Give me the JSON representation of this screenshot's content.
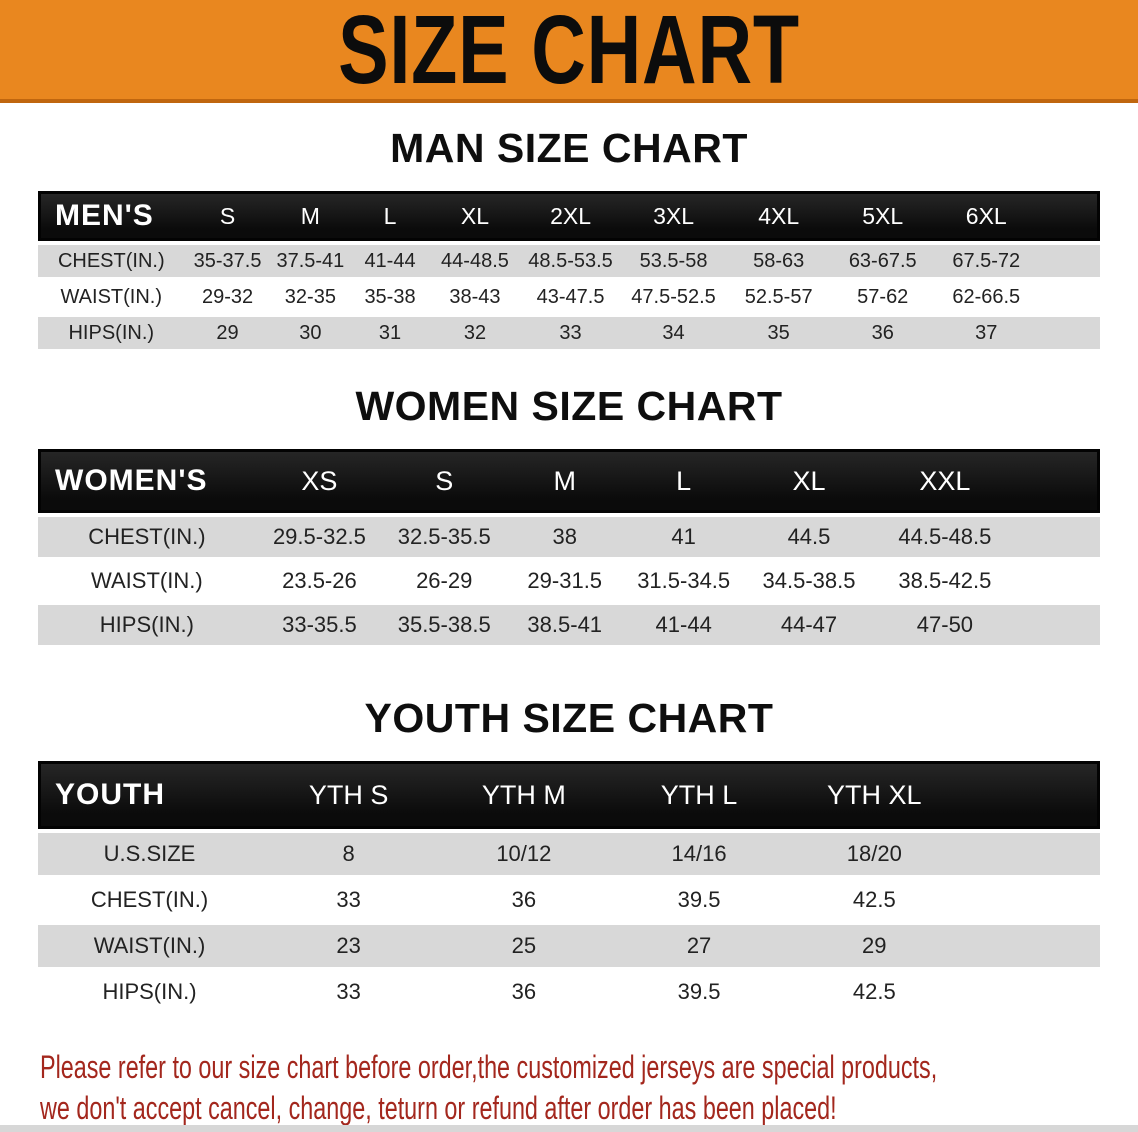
{
  "banner": {
    "title": "SIZE CHART"
  },
  "colors": {
    "banner_bg": "#e9871f",
    "banner_shadow": "#c0660e",
    "header_bar_bg": "#111111",
    "header_bar_text": "#ffffff",
    "stripe_gray": "#d8d8d8",
    "disclaimer_red": "#a3271d"
  },
  "sections": [
    {
      "title": "MAN SIZE CHART",
      "corner_label": "MEN'S",
      "columns": [
        "S",
        "M",
        "L",
        "XL",
        "2XL",
        "3XL",
        "4XL",
        "5XL",
        "6XL"
      ],
      "rows": [
        {
          "label": "CHEST(IN.)",
          "values": [
            "35-37.5",
            "37.5-41",
            "41-44",
            "44-48.5",
            "48.5-53.5",
            "53.5-58",
            "58-63",
            "63-67.5",
            "67.5-72"
          ]
        },
        {
          "label": "WAIST(IN.)",
          "values": [
            "29-32",
            "32-35",
            "35-38",
            "38-43",
            "43-47.5",
            "47.5-52.5",
            "52.5-57",
            "57-62",
            "62-66.5"
          ]
        },
        {
          "label": "HIPS(IN.)",
          "values": [
            "29",
            "30",
            "31",
            "32",
            "33",
            "34",
            "35",
            "36",
            "37"
          ]
        }
      ]
    },
    {
      "title": "WOMEN SIZE CHART",
      "corner_label": "WOMEN'S",
      "columns": [
        "XS",
        "S",
        "M",
        "L",
        "XL",
        "XXL"
      ],
      "rows": [
        {
          "label": "CHEST(IN.)",
          "values": [
            "29.5-32.5",
            "32.5-35.5",
            "38",
            "41",
            "44.5",
            "44.5-48.5"
          ]
        },
        {
          "label": "WAIST(IN.)",
          "values": [
            "23.5-26",
            "26-29",
            "29-31.5",
            "31.5-34.5",
            "34.5-38.5",
            "38.5-42.5"
          ]
        },
        {
          "label": "HIPS(IN.)",
          "values": [
            "33-35.5",
            "35.5-38.5",
            "38.5-41",
            "41-44",
            "44-47",
            "47-50"
          ]
        }
      ]
    },
    {
      "title": "YOUTH SIZE CHART",
      "corner_label": "YOUTH",
      "columns": [
        "YTH S",
        "YTH M",
        "YTH L",
        "YTH XL"
      ],
      "rows": [
        {
          "label": "U.S.SIZE",
          "values": [
            "8",
            "10/12",
            "14/16",
            "18/20"
          ]
        },
        {
          "label": "CHEST(IN.)",
          "values": [
            "33",
            "36",
            "39.5",
            "42.5"
          ]
        },
        {
          "label": "WAIST(IN.)",
          "values": [
            "23",
            "25",
            "27",
            "29"
          ]
        },
        {
          "label": "HIPS(IN.)",
          "values": [
            "33",
            "36",
            "39.5",
            "42.5"
          ]
        }
      ]
    }
  ],
  "disclaimer": {
    "line1": "Please refer to our size chart before order,the customized jerseys are special products,",
    "line2": "we don't accept cancel, change, teturn or refund after order has been placed!"
  }
}
